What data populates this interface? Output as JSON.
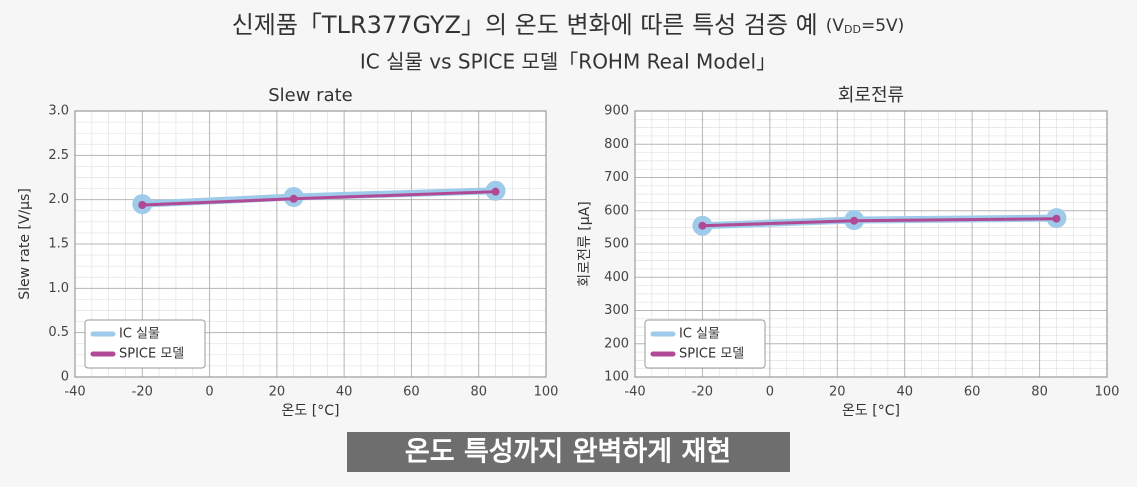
{
  "header": {
    "title": "신제품「TLR377GYZ」의 온도 변화에 따른 특성 검증 예",
    "condition_prefix": "(V",
    "condition_subscript": "DD",
    "condition_suffix": "=5V)",
    "subtitle": "IC 실물 vs SPICE 모델「ROHM Real Model」"
  },
  "chart_data": [
    {
      "type": "line",
      "title": "Slew rate",
      "xlabel": "온도 [°C]",
      "ylabel": "Slew rate [V/μs]",
      "x": [
        -20,
        25,
        85
      ],
      "xlim": [
        -40,
        100
      ],
      "xticks": [
        -40,
        -20,
        0,
        20,
        40,
        60,
        80,
        100
      ],
      "ylim": [
        0,
        3
      ],
      "yticks": [
        0,
        0.5,
        {
          "value": 1,
          "label": "1.0"
        },
        1.5,
        {
          "value": 2,
          "label": "2.0"
        },
        2.5,
        {
          "value": 3,
          "label": "3.0"
        }
      ],
      "grid": true,
      "minor_grid": true,
      "legend": "lower left",
      "series": [
        {
          "name": "IC 실물",
          "color": "#9ecbea",
          "values": [
            1.95,
            2.03,
            2.1
          ]
        },
        {
          "name": "SPICE 모델",
          "color": "#b04a95",
          "values": [
            1.94,
            2.01,
            2.09
          ]
        }
      ]
    },
    {
      "type": "line",
      "title": "회로전류",
      "xlabel": "온도 [°C]",
      "ylabel": "회로전류 [μA]",
      "x": [
        -20,
        25,
        85
      ],
      "xlim": [
        -40,
        100
      ],
      "xticks": [
        -40,
        -20,
        0,
        20,
        40,
        60,
        80,
        100
      ],
      "ylim": [
        100,
        900
      ],
      "yticks": [
        100,
        200,
        300,
        400,
        500,
        600,
        700,
        800,
        900
      ],
      "grid": true,
      "minor_grid": true,
      "legend": "lower left",
      "series": [
        {
          "name": "IC 실물",
          "color": "#9ecbea",
          "values": [
            555,
            572,
            578
          ]
        },
        {
          "name": "SPICE 모델",
          "color": "#b04a95",
          "values": [
            555,
            570,
            576
          ]
        }
      ]
    }
  ],
  "caption": "온도 특성까지 완벽하게 재현"
}
